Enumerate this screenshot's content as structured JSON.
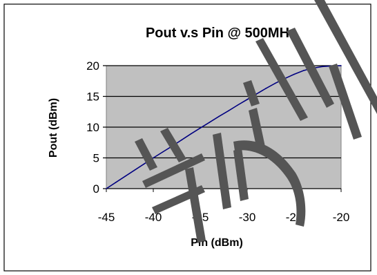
{
  "chart_data": {
    "type": "line",
    "title": "Pout v.s Pin @ 500MHz",
    "xlabel": "Pin (dBm)",
    "ylabel": "Pout (dBm)",
    "xlim": [
      -45,
      -20
    ],
    "ylim": [
      0,
      20
    ],
    "x_ticks": [
      -45,
      -40,
      -35,
      -30,
      -25,
      -20
    ],
    "y_ticks": [
      0,
      5,
      10,
      15,
      20
    ],
    "grid": "horizontal",
    "legend": "none",
    "colors": {
      "plot_area": "#c0c0c0",
      "line": "#000080",
      "gridline": "#000000",
      "watermark": "#555555"
    },
    "series": [
      {
        "x": [
          -45,
          -44,
          -43,
          -42,
          -41,
          -40,
          -39,
          -38,
          -37,
          -36,
          -35,
          -34,
          -33,
          -32,
          -31,
          -30,
          -29,
          -28,
          -27,
          -26,
          -25,
          -24,
          -23,
          -22,
          -21,
          -20
        ],
        "y": [
          0,
          1.0,
          2.0,
          3.0,
          4.0,
          5.0,
          5.95,
          6.9,
          7.9,
          8.9,
          9.85,
          10.8,
          11.75,
          12.65,
          13.6,
          14.5,
          15.4,
          16.3,
          17.15,
          17.9,
          18.6,
          19.2,
          19.6,
          19.85,
          19.95,
          20.0
        ]
      }
    ]
  }
}
